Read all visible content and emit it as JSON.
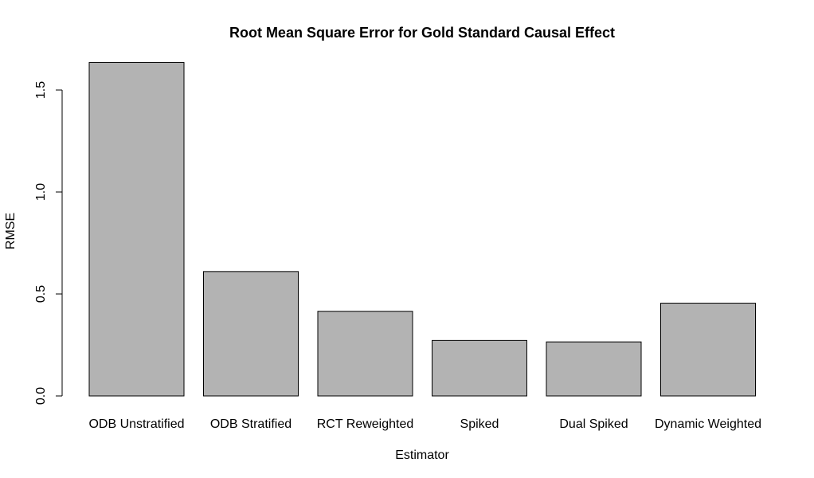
{
  "chart_data": {
    "type": "bar",
    "title": "Root Mean Square Error for Gold Standard Causal Effect",
    "xlabel": "Estimator",
    "ylabel": "RMSE",
    "categories": [
      "ODB Unstratified",
      "ODB Stratified",
      "RCT Reweighted",
      "Spiked",
      "Dual Spiked",
      "Dynamic Weighted"
    ],
    "values": [
      1.635,
      0.61,
      0.415,
      0.272,
      0.265,
      0.455
    ],
    "yticks": [
      0.0,
      0.5,
      1.0,
      1.5
    ],
    "ytick_labels": [
      "0.0",
      "0.5",
      "1.0",
      "1.5"
    ],
    "ylim": [
      0,
      1.7
    ],
    "grid": false,
    "colors": {
      "bar_fill": "#b3b3b3",
      "bar_stroke": "#000000"
    }
  }
}
